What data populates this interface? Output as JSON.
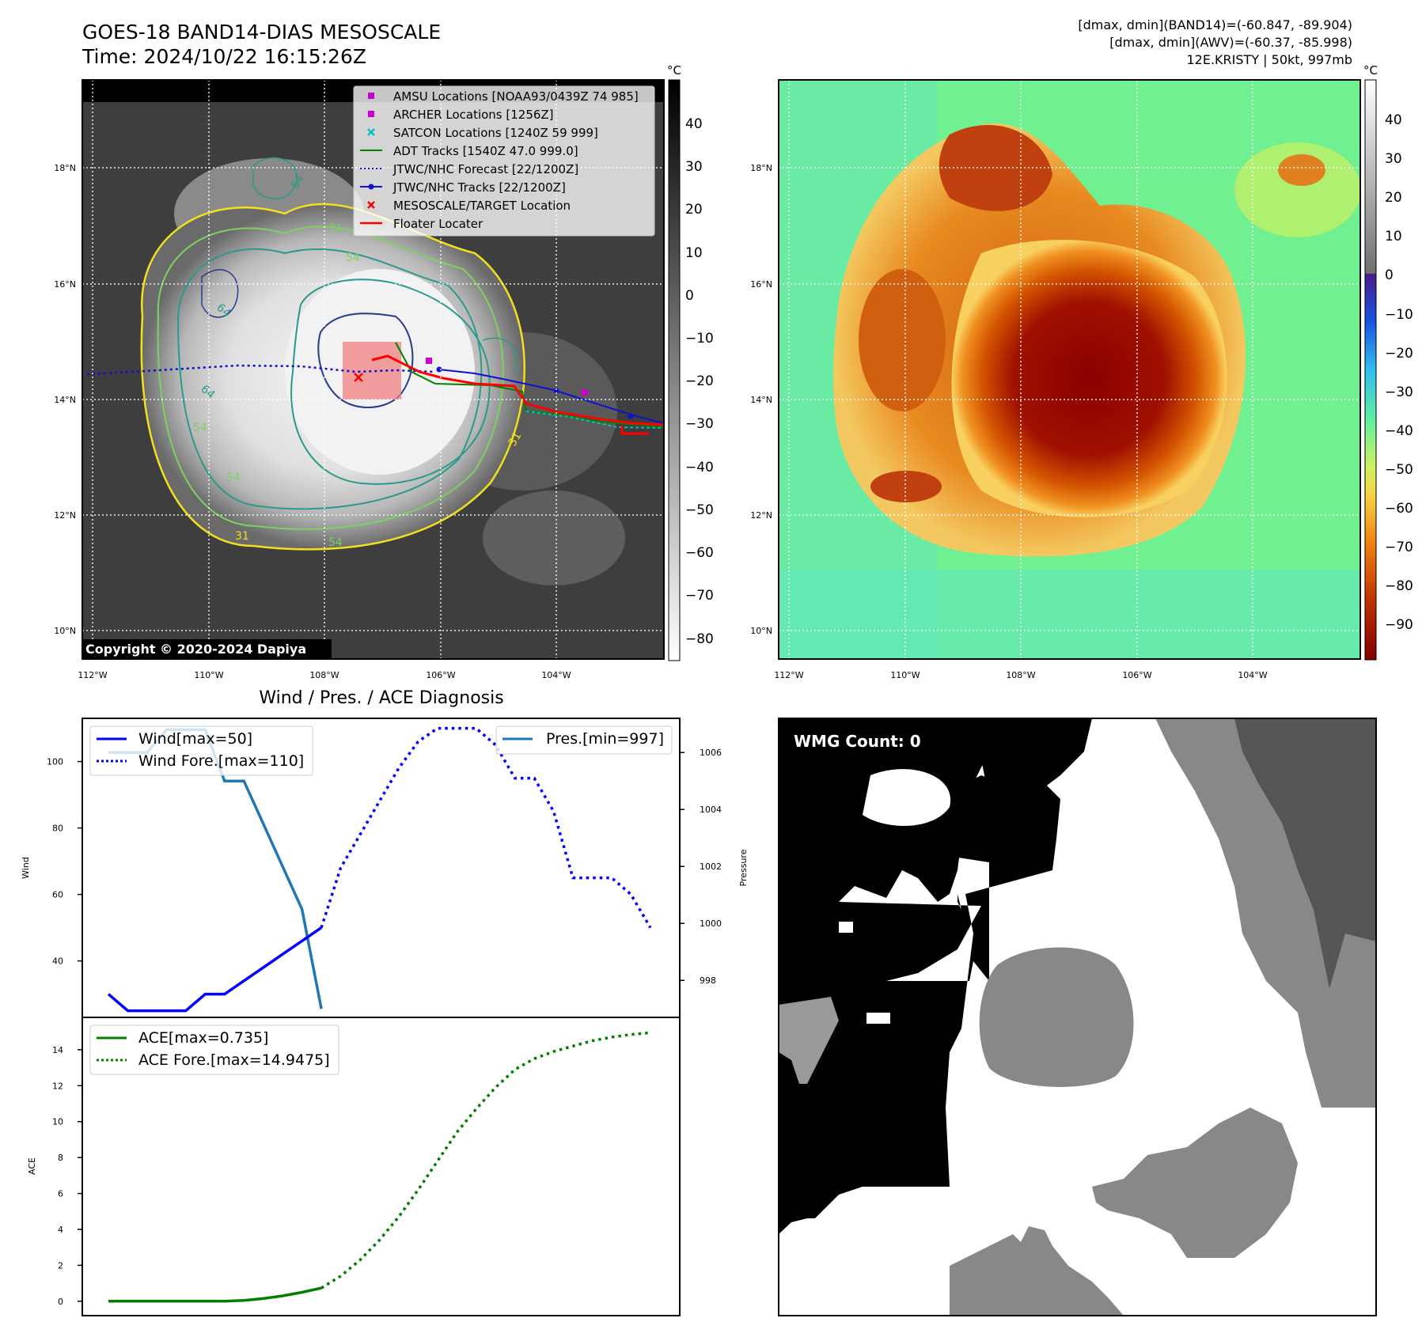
{
  "header": {
    "title_line1": "GOES-18 BAND14-DIAS MESOSCALE",
    "title_line2": "Time: 2024/10/22 16:15:26Z",
    "meta_line1": "[dmax, dmin](BAND14)=(-60.847, -89.904)",
    "meta_line2": "[dmax, dmin](AWV)=(-60.37, -85.998)",
    "meta_line3": "12E.KRISTY | 50kt, 997mb"
  },
  "ir_panel": {
    "copyright": "Copyright © 2020-2024 Dapiya",
    "lat_labels": [
      "18°N",
      "16°N",
      "14°N",
      "12°N",
      "10°N"
    ],
    "lon_labels": [
      "112°W",
      "110°W",
      "108°W",
      "106°W",
      "104°W"
    ],
    "contour_labels": [
      "64",
      "31",
      "54",
      "64",
      "64",
      "54",
      "54",
      "31",
      "31",
      "54"
    ],
    "legend": [
      "AMSU Locations [NOAA93/0439Z 74 985]",
      "ARCHER Locations [1256Z]",
      "SATCON Locations [1240Z 59 999]",
      "ADT Tracks [1540Z 47.0 999.0]",
      "JTWC/NHC Forecast [22/1200Z]",
      "JTWC/NHC Tracks [22/1200Z]",
      "MESOSCALE/TARGET Location",
      "Floater Locater"
    ],
    "colorbar_unit": "°C",
    "colorbar_ticks": [
      "40",
      "30",
      "20",
      "10",
      "0",
      "−10",
      "−20",
      "−30",
      "−40",
      "−50",
      "−60",
      "−70",
      "−80"
    ]
  },
  "awv_panel": {
    "lat_labels": [
      "18°N",
      "16°N",
      "14°N",
      "12°N",
      "10°N"
    ],
    "lon_labels": [
      "112°W",
      "110°W",
      "108°W",
      "106°W",
      "104°W"
    ],
    "colorbar_unit": "°C",
    "colorbar_ticks": [
      "40",
      "30",
      "20",
      "10",
      "0",
      "−10",
      "−20",
      "−30",
      "−40",
      "−50",
      "−60",
      "−70",
      "−80",
      "−90"
    ]
  },
  "wmg_panel": {
    "label": "WMG Count: 0"
  },
  "colors": {
    "wind": "#0000ff",
    "pressure": "#1f77b4",
    "ace": "#008000",
    "adt": "#008000",
    "floater": "#ff0000",
    "satcon": "#00c0c0",
    "amsu": "#cc00cc"
  },
  "chart_data": [
    {
      "type": "line",
      "title": "Wind / Pres. / ACE Diagnosis",
      "ylabel": "Wind",
      "ylim": [
        23,
        113
      ],
      "yticks": [
        "40",
        "60",
        "80",
        "100"
      ],
      "x": [
        0,
        1,
        2,
        3,
        4,
        5,
        6,
        7,
        8,
        9,
        10,
        11,
        12,
        13,
        14,
        15,
        16,
        17,
        18,
        19,
        20,
        21,
        22,
        23,
        24,
        25,
        26,
        27,
        28
      ],
      "series": [
        {
          "name": "Wind[max=50]",
          "style": "solid",
          "x": [
            0,
            1,
            2,
            3,
            4,
            5,
            6,
            7,
            8,
            9,
            10,
            11
          ],
          "values": [
            30,
            25,
            25,
            25,
            25,
            30,
            30,
            34,
            38,
            42,
            46,
            50
          ]
        },
        {
          "name": "Wind Fore.[max=110]",
          "style": "dotted",
          "x": [
            11,
            12,
            13,
            14,
            15,
            16,
            17,
            18,
            19,
            20,
            21,
            22,
            23,
            24,
            25,
            26,
            27,
            28
          ],
          "values": [
            50,
            68,
            78,
            88,
            98,
            106,
            110,
            110,
            110,
            105,
            95,
            95,
            85,
            65,
            65,
            65,
            60,
            50
          ]
        }
      ]
    },
    {
      "type": "line",
      "ylabel": "Pressure",
      "ylim": [
        996.7,
        1007.2
      ],
      "yticks": [
        "998",
        "1000",
        "1002",
        "1004",
        "1006"
      ],
      "series": [
        {
          "name": "Pres.[min=997]",
          "style": "solid",
          "x": [
            0,
            1,
            2,
            3,
            4,
            5,
            6,
            7,
            8,
            9,
            10,
            11
          ],
          "values": [
            1006,
            1006,
            1006,
            1006.8,
            1006.8,
            1006.8,
            1005,
            1005,
            1003.5,
            1002,
            1000.5,
            997
          ]
        }
      ]
    },
    {
      "type": "line",
      "ylabel": "ACE",
      "ylim": [
        -0.8,
        15.8
      ],
      "yticks": [
        "0",
        "2",
        "4",
        "6",
        "8",
        "10",
        "12",
        "14"
      ],
      "series": [
        {
          "name": "ACE[max=0.735]",
          "style": "solid",
          "x": [
            0,
            1,
            2,
            3,
            4,
            5,
            6,
            7,
            8,
            9,
            10,
            11
          ],
          "values": [
            0,
            0,
            0,
            0,
            0,
            0,
            0,
            0.05,
            0.15,
            0.3,
            0.5,
            0.735
          ]
        },
        {
          "name": "ACE Fore.[max=14.9475]",
          "style": "dotted",
          "x": [
            11,
            12,
            13,
            14,
            15,
            16,
            17,
            18,
            19,
            20,
            21,
            22,
            23,
            24,
            25,
            26,
            27,
            28
          ],
          "values": [
            0.735,
            1.4,
            2.3,
            3.4,
            4.7,
            6.2,
            7.8,
            9.4,
            10.7,
            11.9,
            12.9,
            13.5,
            13.9,
            14.2,
            14.5,
            14.7,
            14.85,
            14.9475
          ]
        }
      ]
    }
  ]
}
